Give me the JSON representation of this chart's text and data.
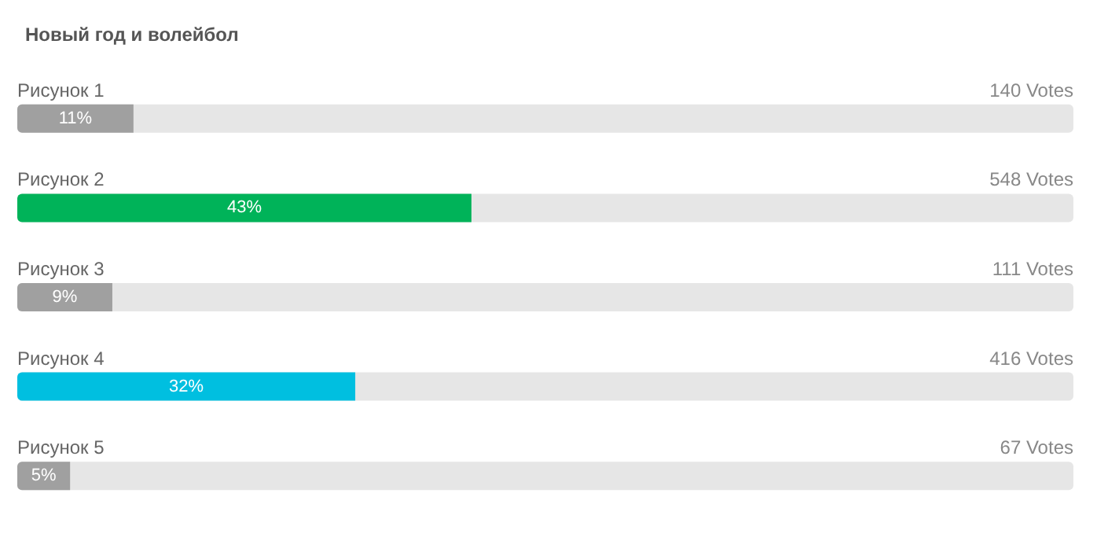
{
  "chart_data": {
    "type": "bar",
    "orientation": "horizontal",
    "title": "Новый год и волейбол",
    "categories": [
      "Рисунок 1",
      "Рисунок 2",
      "Рисунок 3",
      "Рисунок 4",
      "Рисунок 5"
    ],
    "values": [
      11,
      43,
      9,
      32,
      5
    ],
    "colors": [
      "#a0a0a0",
      "#00b359",
      "#a0a0a0",
      "#00bfe0",
      "#a0a0a0"
    ],
    "value_labels": [
      "11%",
      "43%",
      "9%",
      "32%",
      "5%"
    ],
    "annotations": [
      "140 Votes",
      "548 Votes",
      "111 Votes",
      "416 Votes",
      "67 Votes"
    ],
    "xlim": [
      0,
      100
    ],
    "tick_labels": "y"
  }
}
